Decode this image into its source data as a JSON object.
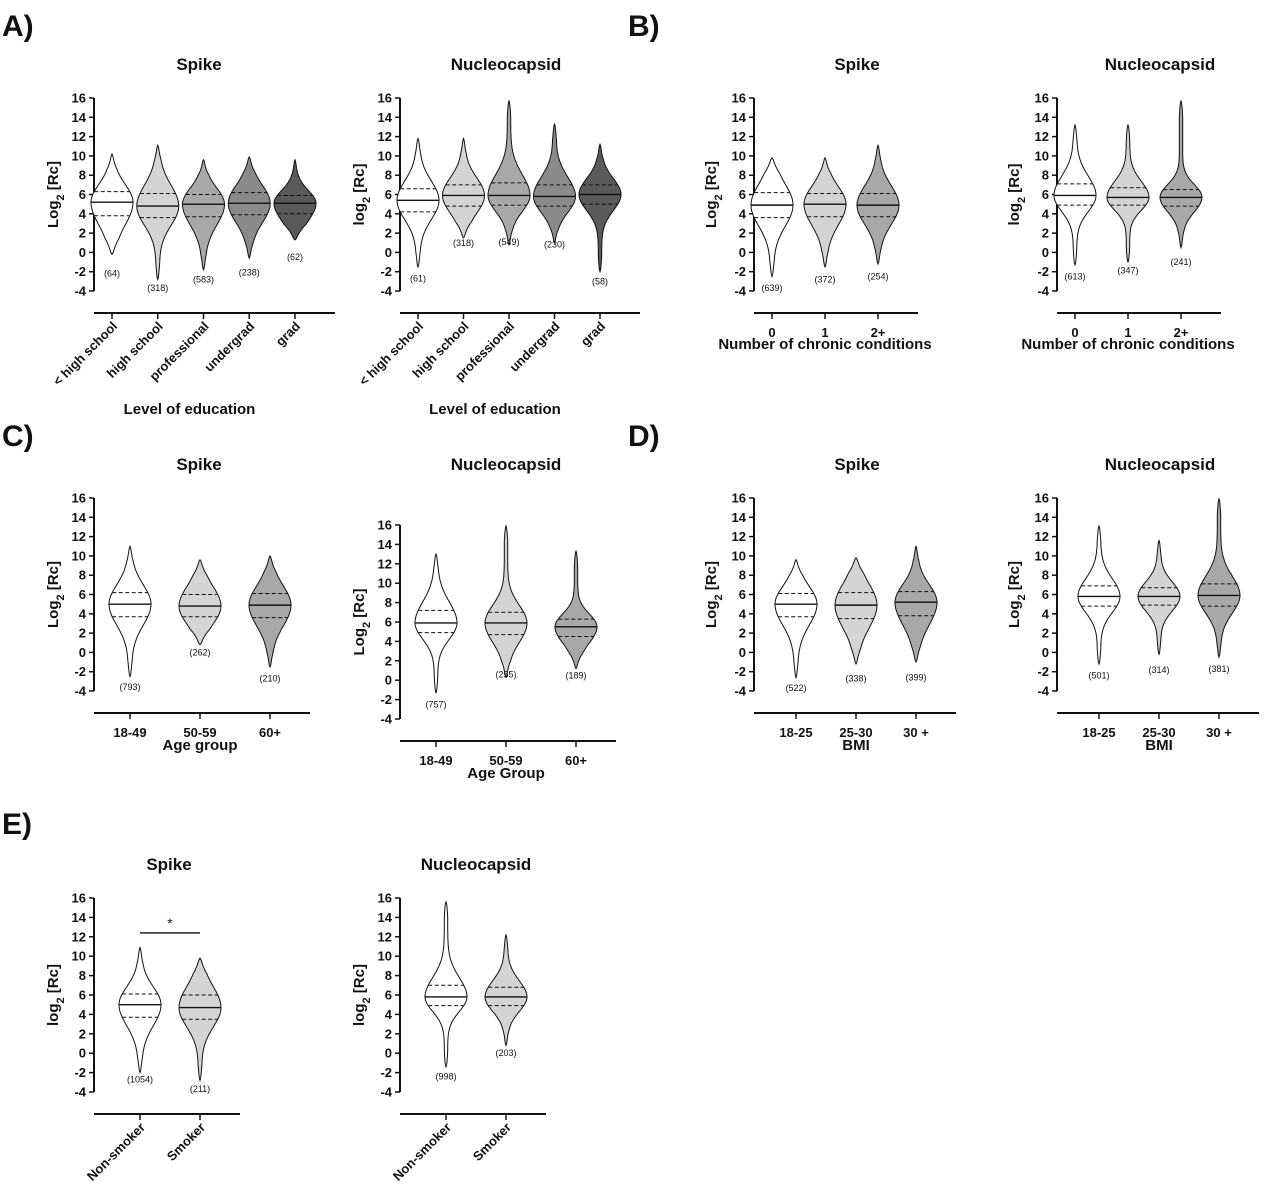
{
  "panel_labels": [
    "A)",
    "B)",
    "C)",
    "D)",
    "E)"
  ],
  "chart_data": [
    {
      "panel": "A)",
      "type": "violin",
      "title": "Spike",
      "ylabel": "Log2 [Rc]",
      "xlabel": "Level of education",
      "ylim": [
        -4,
        16
      ],
      "yticks": [
        16,
        14,
        12,
        10,
        8,
        6,
        4,
        2,
        0,
        -2,
        -4
      ],
      "categories": [
        "< high school",
        "high school",
        "professional",
        "undergrad",
        "grad"
      ],
      "n_labels": [
        "(64)",
        "(318)",
        "(583)",
        "(238)",
        "(62)"
      ],
      "fills": [
        "#ffffff",
        "#d4d4d4",
        "#a8a8a8",
        "#8a8a8a",
        "#5a5a5a"
      ],
      "min": [
        -0.2,
        -2.8,
        -1.8,
        -0.6,
        1.3
      ],
      "max": [
        10.2,
        11.1,
        9.6,
        9.9,
        9.6
      ],
      "q1": [
        3.8,
        3.6,
        3.7,
        3.9,
        4.0
      ],
      "median": [
        5.2,
        4.8,
        5.0,
        5.1,
        5.1
      ],
      "q3": [
        6.3,
        6.1,
        6.0,
        6.2,
        5.9
      ],
      "n_label_y": [
        -2.2,
        -3.7,
        -2.8,
        -2.1,
        -0.5
      ]
    },
    {
      "panel": "A)",
      "type": "violin",
      "title": "Nucleocapsid",
      "ylabel": "log2 [Rc]",
      "xlabel": "Level of education",
      "ylim": [
        -4,
        16
      ],
      "yticks": [
        16,
        14,
        12,
        10,
        8,
        6,
        4,
        2,
        0,
        -2,
        -4
      ],
      "categories": [
        "< high school",
        "high school",
        "professional",
        "undergrad",
        "grad"
      ],
      "n_labels": [
        "(61)",
        "(318)",
        "(549)",
        "(230)",
        "(58)"
      ],
      "fills": [
        "#ffffff",
        "#d4d4d4",
        "#a8a8a8",
        "#8a8a8a",
        "#5a5a5a"
      ],
      "min": [
        -1.5,
        1.5,
        0.8,
        1.0,
        -2.0
      ],
      "max": [
        11.8,
        11.8,
        15.7,
        13.3,
        11.2
      ],
      "q1": [
        4.2,
        4.8,
        4.9,
        4.8,
        5.0
      ],
      "median": [
        5.4,
        5.9,
        5.9,
        5.8,
        6.0
      ],
      "q3": [
        6.6,
        7.0,
        7.2,
        7.0,
        7.0
      ],
      "n_label_y": [
        -2.7,
        1.0,
        1.1,
        0.8,
        -3.0
      ]
    },
    {
      "panel": "B)",
      "type": "violin",
      "title": "Spike",
      "ylabel": "Log2 [Rc]",
      "xlabel": "Number of chronic conditions",
      "ylim": [
        -4,
        16
      ],
      "yticks": [
        16,
        14,
        12,
        10,
        8,
        6,
        4,
        2,
        0,
        -2,
        -4
      ],
      "categories": [
        "0",
        "1",
        "2+"
      ],
      "n_labels": [
        "(639)",
        "(372)",
        "(254)"
      ],
      "fills": [
        "#ffffff",
        "#d4d4d4",
        "#a8a8a8"
      ],
      "min": [
        -2.5,
        -1.5,
        -1.2
      ],
      "max": [
        9.8,
        9.8,
        11.1
      ],
      "q1": [
        3.6,
        3.7,
        3.7
      ],
      "median": [
        4.9,
        5.0,
        4.9
      ],
      "q3": [
        6.2,
        6.1,
        6.1
      ],
      "n_label_y": [
        -3.7,
        -2.8,
        -2.5
      ]
    },
    {
      "panel": "B)",
      "type": "violin",
      "title": "Nucleocapsid",
      "ylabel": "log2 [Rc]",
      "xlabel": "Number of chronic conditions",
      "ylim": [
        -4,
        16
      ],
      "yticks": [
        16,
        14,
        12,
        10,
        8,
        6,
        4,
        2,
        0,
        -2,
        -4
      ],
      "categories": [
        "0",
        "1",
        "2+"
      ],
      "n_labels": [
        "(613)",
        "(347)",
        "(241)"
      ],
      "fills": [
        "#ffffff",
        "#d4d4d4",
        "#a8a8a8"
      ],
      "min": [
        -1.3,
        -1.0,
        0.5
      ],
      "max": [
        13.2,
        13.2,
        15.7
      ],
      "q1": [
        4.9,
        4.9,
        4.8
      ],
      "median": [
        5.9,
        5.7,
        5.7
      ],
      "q3": [
        7.1,
        6.7,
        6.5
      ],
      "n_label_y": [
        -2.5,
        -1.9,
        -1.0
      ]
    },
    {
      "panel": "C)",
      "type": "violin",
      "title": "Spike",
      "ylabel": "Log2 [Rc]",
      "xlabel": "Age group",
      "ylim": [
        -4,
        16
      ],
      "yticks": [
        16,
        14,
        12,
        10,
        8,
        6,
        4,
        2,
        0,
        -2,
        -4
      ],
      "categories": [
        "18-49",
        "50-59",
        "60+"
      ],
      "n_labels": [
        "(793)",
        "(262)",
        "(210)"
      ],
      "fills": [
        "#ffffff",
        "#d4d4d4",
        "#a8a8a8"
      ],
      "min": [
        -2.5,
        0.8,
        -1.5
      ],
      "max": [
        11.0,
        9.6,
        10.0
      ],
      "q1": [
        3.7,
        3.7,
        3.6
      ],
      "median": [
        5.0,
        4.8,
        4.9
      ],
      "q3": [
        6.2,
        6.0,
        6.1
      ],
      "n_label_y": [
        -3.6,
        0.0,
        -2.7
      ]
    },
    {
      "panel": "C)",
      "type": "violin",
      "title": "Nucleocapsid",
      "ylabel": "Log2 [Rc]",
      "xlabel": "Age Group",
      "ylim": [
        -4,
        16
      ],
      "yticks": [
        16,
        14,
        12,
        10,
        8,
        6,
        4,
        2,
        0,
        -2,
        -4
      ],
      "categories": [
        "18-49",
        "50-59",
        "60+"
      ],
      "n_labels": [
        "(757)",
        "(255)",
        "(189)"
      ],
      "fills": [
        "#ffffff",
        "#d4d4d4",
        "#a8a8a8"
      ],
      "min": [
        -1.3,
        0.3,
        1.2
      ],
      "max": [
        13.0,
        15.9,
        13.3
      ],
      "q1": [
        4.9,
        4.7,
        4.5
      ],
      "median": [
        5.9,
        5.9,
        5.5
      ],
      "q3": [
        7.2,
        7.0,
        6.3
      ],
      "n_label_y": [
        -2.5,
        0.6,
        0.5
      ]
    },
    {
      "panel": "D)",
      "type": "violin",
      "title": "Spike",
      "ylabel": "Log2 [Rc]",
      "xlabel": "BMI",
      "ylim": [
        -4,
        16
      ],
      "yticks": [
        16,
        14,
        12,
        10,
        8,
        6,
        4,
        2,
        0,
        -2,
        -4
      ],
      "categories": [
        "18-25",
        "25-30",
        "30 +"
      ],
      "n_labels": [
        "(522)",
        "(338)",
        "(399)"
      ],
      "fills": [
        "#ffffff",
        "#d4d4d4",
        "#a8a8a8"
      ],
      "min": [
        -2.6,
        -1.2,
        -1.0
      ],
      "max": [
        9.6,
        9.8,
        11.0
      ],
      "q1": [
        3.7,
        3.5,
        3.8
      ],
      "median": [
        5.0,
        4.9,
        5.2
      ],
      "q3": [
        6.1,
        6.2,
        6.3
      ],
      "n_label_y": [
        -3.7,
        -2.7,
        -2.6
      ]
    },
    {
      "panel": "D)",
      "type": "violin",
      "title": "Nucleocapsid",
      "ylabel": "Log2 [Rc]",
      "xlabel": "BMI",
      "ylim": [
        -4,
        16
      ],
      "yticks": [
        16,
        14,
        12,
        10,
        8,
        6,
        4,
        2,
        0,
        -2,
        -4
      ],
      "categories": [
        "18-25",
        "25-30",
        "30 +"
      ],
      "n_labels": [
        "(501)",
        "(314)",
        "(381)"
      ],
      "fills": [
        "#ffffff",
        "#d4d4d4",
        "#a8a8a8"
      ],
      "min": [
        -1.2,
        -0.2,
        -0.5
      ],
      "max": [
        13.1,
        11.6,
        15.9
      ],
      "q1": [
        4.8,
        4.9,
        4.8
      ],
      "median": [
        5.8,
        5.8,
        5.9
      ],
      "q3": [
        6.9,
        6.7,
        7.1
      ],
      "n_label_y": [
        -2.4,
        -1.8,
        -1.7
      ]
    },
    {
      "panel": "E)",
      "type": "violin",
      "title": "Spike",
      "ylabel": "log2 [Rc]",
      "xlabel": "",
      "ylim": [
        -4,
        16
      ],
      "yticks": [
        16,
        14,
        12,
        10,
        8,
        6,
        4,
        2,
        0,
        -2,
        -4
      ],
      "categories": [
        "Non-smoker",
        "Smoker"
      ],
      "n_labels": [
        "(1054)",
        "(211)"
      ],
      "fills": [
        "#ffffff",
        "#d4d4d4"
      ],
      "min": [
        -2.0,
        -2.8
      ],
      "max": [
        10.9,
        9.8
      ],
      "q1": [
        3.7,
        3.5
      ],
      "median": [
        5.0,
        4.7
      ],
      "q3": [
        6.1,
        6.0
      ],
      "n_label_y": [
        -2.7,
        -3.7
      ],
      "significance": {
        "label": "*",
        "between": [
          0,
          1
        ],
        "y": 12.4
      }
    },
    {
      "panel": "E)",
      "type": "violin",
      "title": "Nucleocapsid",
      "ylabel": "log2 [Rc]",
      "xlabel": "",
      "ylim": [
        -4,
        16
      ],
      "yticks": [
        16,
        14,
        12,
        10,
        8,
        6,
        4,
        2,
        0,
        -2,
        -4
      ],
      "categories": [
        "Non-smoker",
        "Smoker"
      ],
      "n_labels": [
        "(998)",
        "(203)"
      ],
      "fills": [
        "#ffffff",
        "#d4d4d4"
      ],
      "min": [
        -1.4,
        0.8
      ],
      "max": [
        15.6,
        12.2
      ],
      "q1": [
        4.9,
        4.9
      ],
      "median": [
        5.8,
        5.8
      ],
      "q3": [
        7.0,
        6.8
      ],
      "n_label_y": [
        -2.4,
        0.0
      ]
    }
  ]
}
